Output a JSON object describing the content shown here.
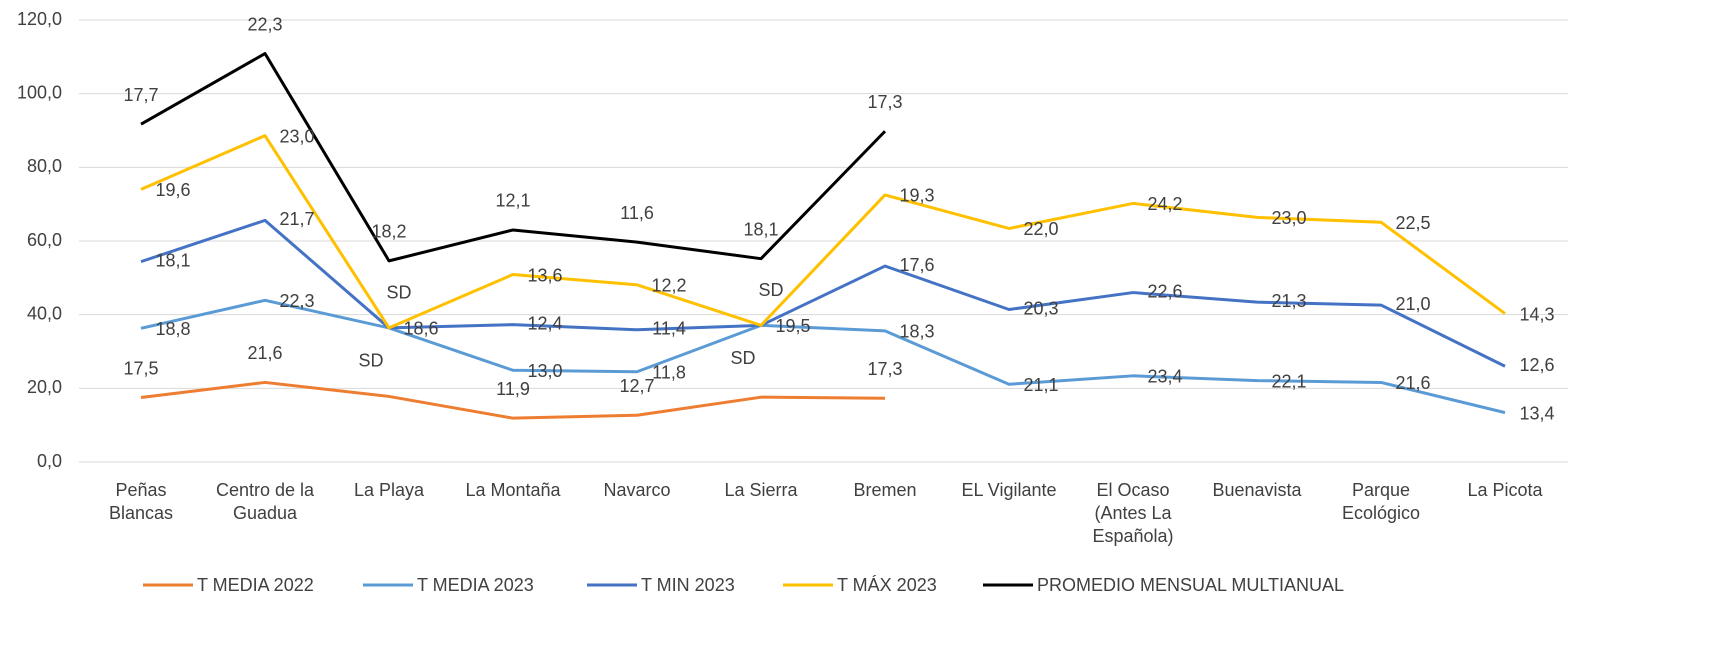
{
  "chart_data": {
    "type": "stacked-line",
    "categories": [
      "Peñas\nBlancas",
      "Centro de la\nGuadua",
      "La Playa",
      "La Montaña",
      "Navarco",
      "La Sierra",
      "Bremen",
      "EL Vigilante",
      "El Ocaso\n(Antes La\nEspañola)",
      "Buenavista",
      "Parque\nEcológico",
      "La Picota"
    ],
    "ylim": [
      0,
      120
    ],
    "yticks": [
      {
        "value": 0,
        "label": "0,0"
      },
      {
        "value": 20,
        "label": "20,0"
      },
      {
        "value": 40,
        "label": "40,0"
      },
      {
        "value": 60,
        "label": "60,0"
      },
      {
        "value": 80,
        "label": "80,0"
      },
      {
        "value": 100,
        "label": "100,0"
      },
      {
        "value": 120,
        "label": "120,0"
      }
    ],
    "grid": true,
    "legend": "bottom",
    "series": [
      {
        "name": "T MEDIA 2022",
        "color": "#ed7d31",
        "values": [
          17.5,
          21.6,
          17.8,
          11.9,
          12.7,
          17.6,
          17.3,
          null,
          null,
          null,
          null,
          null
        ],
        "value_labels": [
          "17,5",
          "21,6",
          null,
          "11,9",
          "12,7",
          null,
          "17,3",
          null,
          null,
          null,
          null,
          null
        ]
      },
      {
        "name": "T MEDIA 2023",
        "color": "#5b9bd5",
        "values": [
          18.8,
          22.3,
          18.6,
          13.0,
          11.8,
          19.5,
          18.3,
          21.1,
          23.4,
          22.1,
          21.6,
          13.4
        ],
        "value_labels": [
          "18,8",
          "22,3",
          "18,6",
          "13,0",
          "11,8",
          "19,5",
          "18,3",
          "21,1",
          "23,4",
          "22,1",
          "21,6",
          "13,4"
        ]
      },
      {
        "name": "T MIN 2023",
        "color": "#4472c4",
        "values": [
          18.1,
          21.7,
          0,
          12.4,
          11.4,
          0,
          17.6,
          20.3,
          22.6,
          21.3,
          21.0,
          12.6
        ],
        "value_labels": [
          "18,1",
          "21,7",
          "SD",
          "12,4",
          "11,4",
          "SD",
          "17,6",
          "20,3",
          "22,6",
          "21,3",
          "21,0",
          "12,6"
        ]
      },
      {
        "name": "T MÁX 2023",
        "color": "#ffc000",
        "values": [
          19.6,
          23.0,
          0,
          13.6,
          12.2,
          0,
          19.3,
          22.0,
          24.2,
          23.0,
          22.5,
          14.3
        ],
        "value_labels": [
          "19,6",
          "23,0",
          "SD",
          "13,6",
          "12,2",
          "SD",
          "19,3",
          "22,0",
          "24,2",
          "23,0",
          "22,5",
          "14,3"
        ]
      },
      {
        "name": "PROMEDIO MENSUAL MULTIANUAL",
        "color": "#000000",
        "values": [
          17.7,
          22.3,
          18.2,
          12.1,
          11.6,
          18.1,
          17.3,
          null,
          null,
          null,
          null,
          null
        ],
        "value_labels": [
          "17,7",
          "22,3",
          "18,2",
          "12,1",
          "11,6",
          "18,1",
          "17,3",
          null,
          null,
          null,
          null,
          null
        ]
      }
    ]
  }
}
